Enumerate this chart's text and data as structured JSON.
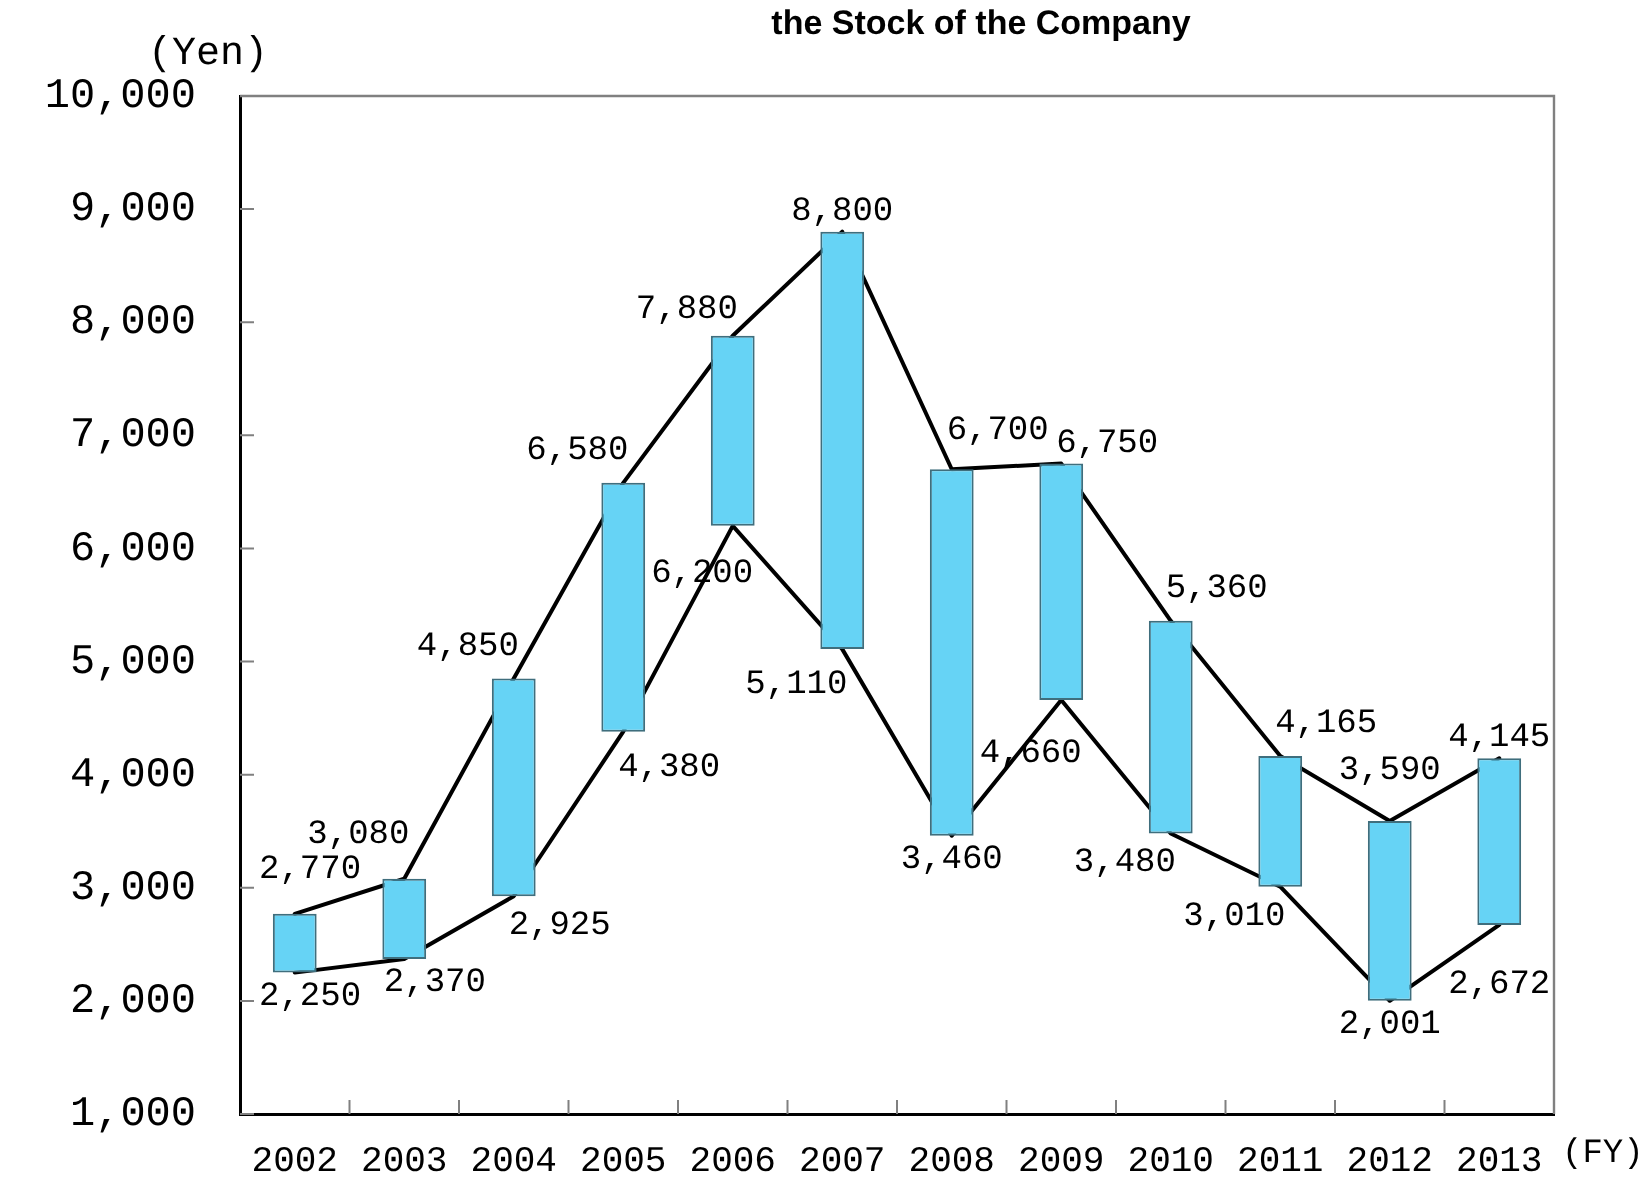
{
  "chart_data": {
    "type": "bar",
    "title": "the Stock of the Company",
    "ylabel": "(Yen)",
    "xlabel": "(FY)",
    "categories": [
      "2002",
      "2003",
      "2004",
      "2005",
      "2006",
      "2007",
      "2008",
      "2009",
      "2010",
      "2011",
      "2012",
      "2013"
    ],
    "series": [
      {
        "color": "#66d3f5",
        "base": [
          2250,
          2370,
          2925,
          4380,
          6200,
          5110,
          3460,
          4660,
          3480,
          3010,
          2001,
          2672
        ],
        "values": [
          520,
          710,
          1925,
          2200,
          1680,
          3690,
          3240,
          2090,
          1880,
          1155,
          1589,
          1473
        ]
      },
      {
        "type": "line",
        "color": "#000000",
        "values": [
          2770,
          3080,
          4850,
          6580,
          7880,
          8800,
          6700,
          6750,
          5360,
          4165,
          3590,
          4145
        ],
        "value_labels": [
          "2,770",
          "3,080",
          "4,850",
          "6,580",
          "7,880",
          "8,800",
          "6,700",
          "6,750",
          "5,360",
          "4,165",
          "3,590",
          "4,145"
        ]
      },
      {
        "type": "line",
        "color": "#000000",
        "values": [
          2250,
          2370,
          2925,
          4380,
          6200,
          5110,
          3460,
          4660,
          3480,
          3010,
          2001,
          2672
        ],
        "value_labels": [
          "2,250",
          "2,370",
          "2,925",
          "4,380",
          "6,200",
          "5,110",
          "3,460",
          "4,660",
          "3,480",
          "3,010",
          "2,001",
          "2,672"
        ]
      }
    ],
    "ylim": [
      1000,
      10000
    ],
    "yticks": [
      {
        "value": 1000,
        "label": "1,000"
      },
      {
        "value": 2000,
        "label": "2,000"
      },
      {
        "value": 3000,
        "label": "3,000"
      },
      {
        "value": 4000,
        "label": "4,000"
      },
      {
        "value": 5000,
        "label": "5,000"
      },
      {
        "value": 6000,
        "label": "6,000"
      },
      {
        "value": 7000,
        "label": "7,000"
      },
      {
        "value": 8000,
        "label": "8,000"
      },
      {
        "value": 9000,
        "label": "9,000"
      },
      {
        "value": 10000,
        "label": "10,000"
      }
    ],
    "grid": false,
    "legend": false,
    "marker": "none"
  }
}
